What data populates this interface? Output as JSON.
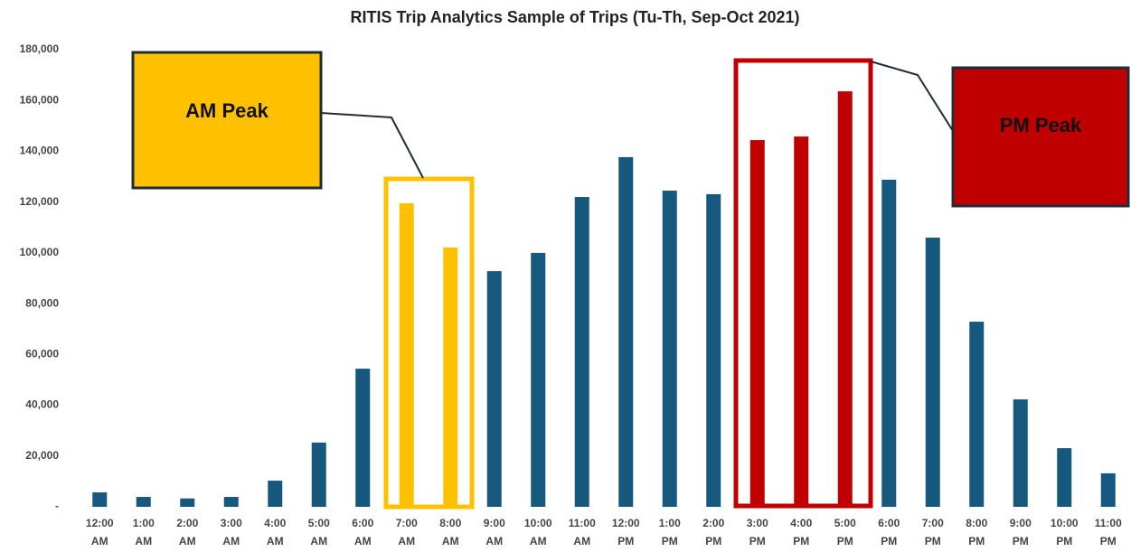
{
  "chart_data": {
    "type": "bar",
    "title": "RITIS Trip Analytics Sample of Trips (Tu-Th, Sep-Oct 2021)",
    "categories": [
      "12:00 AM",
      "1:00 AM",
      "2:00 AM",
      "3:00 AM",
      "4:00 AM",
      "5:00 AM",
      "6:00 AM",
      "7:00 AM",
      "8:00 AM",
      "9:00 AM",
      "10:00 AM",
      "11:00 AM",
      "12:00 PM",
      "1:00 PM",
      "2:00 PM",
      "3:00 PM",
      "4:00 PM",
      "5:00 PM",
      "6:00 PM",
      "7:00 PM",
      "8:00 PM",
      "9:00 PM",
      "10:00 PM",
      "11:00 PM"
    ],
    "values": [
      5700,
      3900,
      3300,
      3900,
      10300,
      25300,
      54400,
      119500,
      102100,
      92800,
      100000,
      122000,
      137700,
      124500,
      123100,
      144400,
      145800,
      163600,
      128800,
      106000,
      72900,
      42300,
      23100,
      13200
    ],
    "colors": [
      "#17597e",
      "#17597e",
      "#17597e",
      "#17597e",
      "#17597e",
      "#17597e",
      "#17597e",
      "#ffc000",
      "#ffc000",
      "#17597e",
      "#17597e",
      "#17597e",
      "#17597e",
      "#17597e",
      "#17597e",
      "#c00000",
      "#c00000",
      "#c00000",
      "#17597e",
      "#17597e",
      "#17597e",
      "#17597e",
      "#17597e",
      "#17597e"
    ],
    "ylim": [
      0,
      180000
    ],
    "yticks": [
      {
        "value": 0,
        "label": "-"
      },
      {
        "value": 20000,
        "label": "20,000"
      },
      {
        "value": 40000,
        "label": "40,000"
      },
      {
        "value": 60000,
        "label": "60,000"
      },
      {
        "value": 80000,
        "label": "80,000"
      },
      {
        "value": 100000,
        "label": "100,000"
      },
      {
        "value": 120000,
        "label": "120,000"
      },
      {
        "value": 140000,
        "label": "140,000"
      },
      {
        "value": 160000,
        "label": "160,000"
      },
      {
        "value": 180000,
        "label": "180,000"
      }
    ],
    "grid": false,
    "annotations": [
      {
        "text": "AM Peak",
        "color": "#ffc000"
      },
      {
        "text": "PM Peak",
        "color": "#c00000"
      }
    ]
  }
}
